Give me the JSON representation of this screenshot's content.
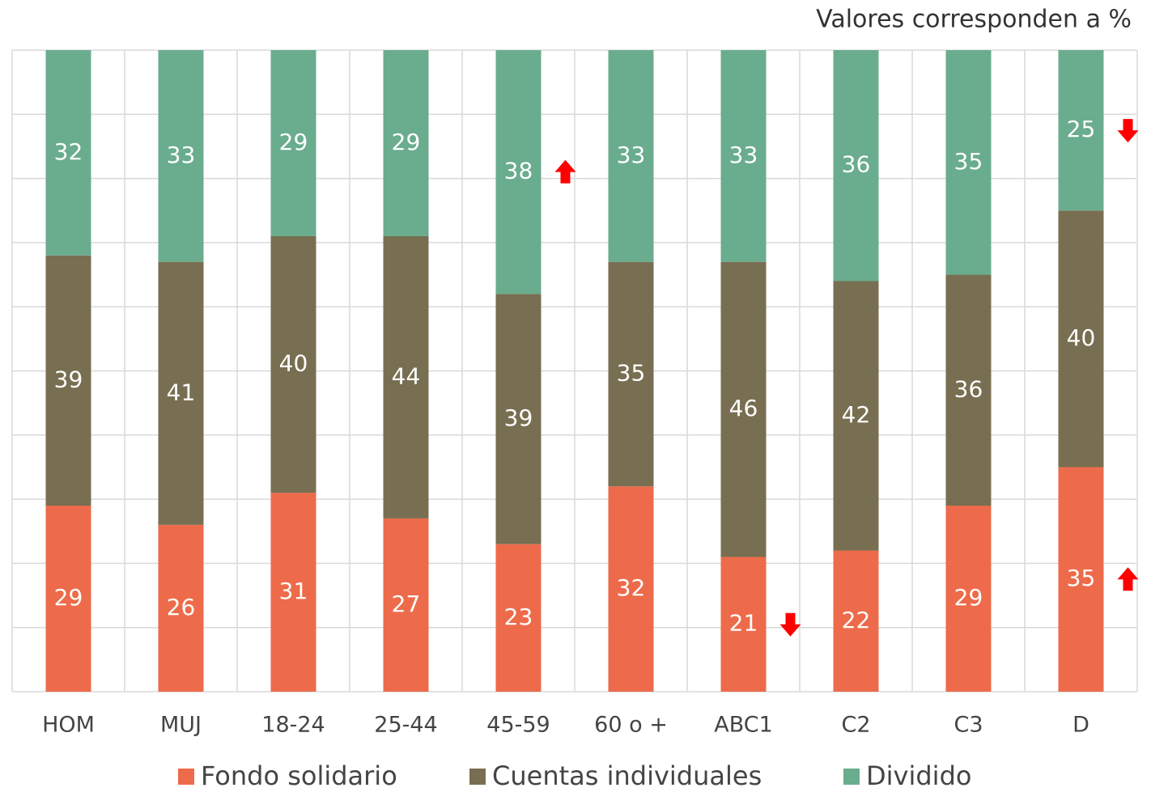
{
  "chart_data": {
    "type": "stacked_bar",
    "title": "Valores corresponden a %",
    "categories": [
      "HOM",
      "MUJ",
      "18-24",
      "25-44",
      "45-59",
      "60 o +",
      "ABC1",
      "C2",
      "C3",
      "D"
    ],
    "series": [
      {
        "name": "Fondo solidario",
        "color": "#ed6b4a",
        "values": [
          29,
          26,
          31,
          27,
          23,
          32,
          21,
          22,
          29,
          35
        ]
      },
      {
        "name": "Cuentas individuales",
        "color": "#786e51",
        "values": [
          39,
          41,
          40,
          44,
          39,
          35,
          46,
          42,
          36,
          40
        ]
      },
      {
        "name": "Dividido",
        "color": "#6aac8e",
        "values": [
          32,
          33,
          29,
          29,
          38,
          33,
          33,
          36,
          35,
          25
        ]
      }
    ],
    "ylim": [
      0,
      100
    ],
    "yticks": [
      0,
      10,
      20,
      30,
      40,
      50,
      60,
      70,
      80,
      90,
      100
    ],
    "grid": true,
    "legend": "bottom",
    "annotations": [
      {
        "category": "45-59",
        "series": "Dividido",
        "direction": "up",
        "color": "#ff0000"
      },
      {
        "category": "ABC1",
        "series": "Fondo solidario",
        "direction": "down",
        "color": "#ff0000"
      },
      {
        "category": "D",
        "series": "Dividido",
        "direction": "down",
        "color": "#ff0000"
      },
      {
        "category": "D",
        "series": "Fondo solidario",
        "direction": "up",
        "color": "#ff0000"
      }
    ]
  }
}
